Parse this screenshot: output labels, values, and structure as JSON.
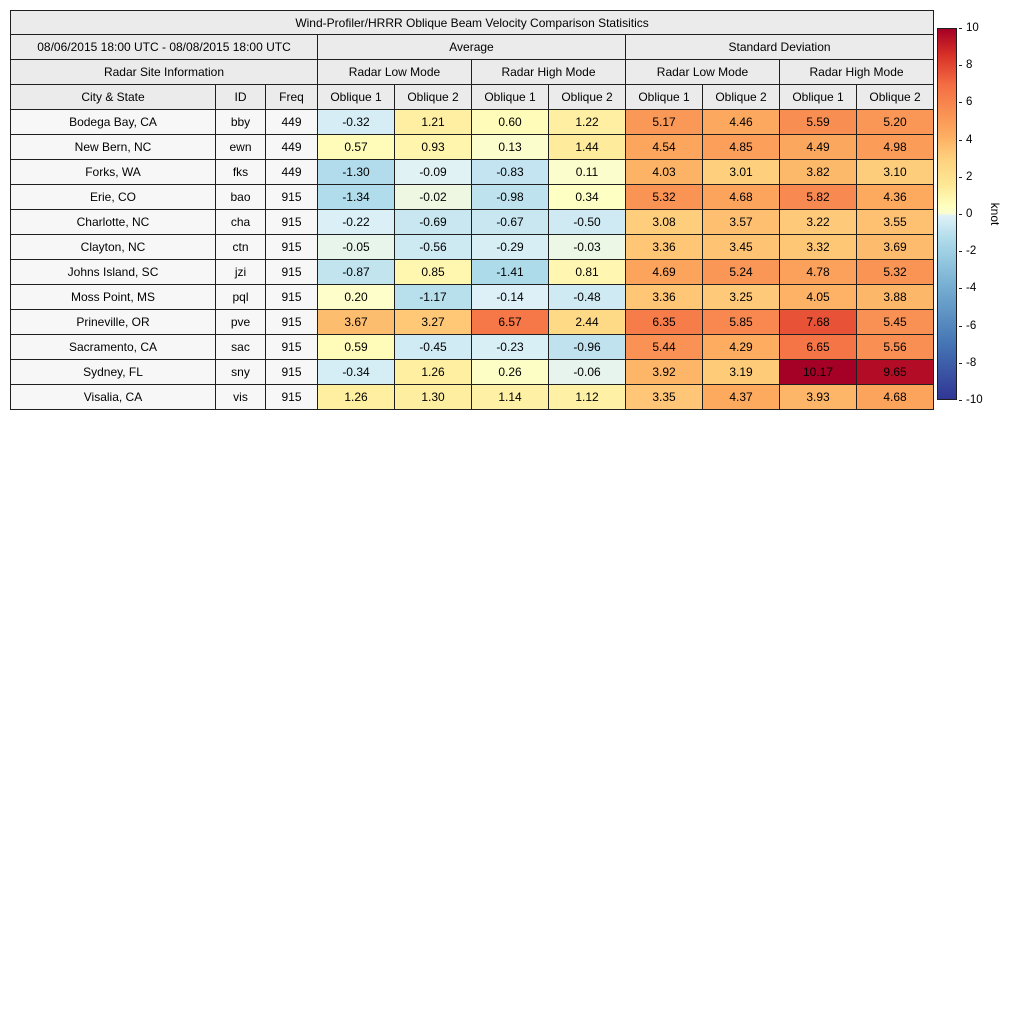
{
  "header": {
    "title": "Wind-Profiler/HRRR Oblique Beam Velocity Comparison Statisitics",
    "date_range": "08/06/2015 18:00 UTC - 08/08/2015 18:00 UTC",
    "groups": {
      "average": "Average",
      "std_dev": "Standard Deviation",
      "site_info": "Radar Site Information",
      "low_mode": "Radar Low Mode",
      "high_mode": "Radar High Mode"
    },
    "column_headers": [
      "City & State",
      "ID",
      "Freq",
      "Oblique 1",
      "Oblique 2",
      "Oblique 1",
      "Oblique 2",
      "Oblique 1",
      "Oblique 2",
      "Oblique 1",
      "Oblique 2"
    ]
  },
  "colorbar": {
    "label": "knot",
    "min": -10,
    "max": 10,
    "ticks": [
      10,
      8,
      6,
      4,
      2,
      0,
      -2,
      -4,
      -6,
      -8,
      -10
    ],
    "stops": [
      [
        -10,
        "#313695"
      ],
      [
        -7,
        "#4575b4"
      ],
      [
        -4,
        "#74add1"
      ],
      [
        -1.5,
        "#abd9e9"
      ],
      [
        -0.1,
        "#def1f7"
      ],
      [
        0.05,
        "#fbfdd0"
      ],
      [
        0.4,
        "#ffffbf"
      ],
      [
        1.6,
        "#fee895"
      ],
      [
        3,
        "#fed07e"
      ],
      [
        4.2,
        "#fdae61"
      ],
      [
        5.6,
        "#f98e52"
      ],
      [
        7,
        "#f46d43"
      ],
      [
        8.6,
        "#d73027"
      ],
      [
        10,
        "#a50026"
      ]
    ]
  },
  "chart_data": {
    "type": "heatmap",
    "title": "Wind-Profiler/HRRR Oblique Beam Velocity Comparison Statisitics",
    "date_range": "08/06/2015 18:00 UTC - 08/08/2015 18:00 UTC",
    "units": "knot",
    "color_range": [
      -10,
      10
    ],
    "row_header_columns": [
      "City & State",
      "ID",
      "Freq"
    ],
    "value_columns": [
      "Average / Radar Low Mode / Oblique 1",
      "Average / Radar Low Mode / Oblique 2",
      "Average / Radar High Mode / Oblique 1",
      "Average / Radar High Mode / Oblique 2",
      "Standard Deviation / Radar Low Mode / Oblique 1",
      "Standard Deviation / Radar Low Mode / Oblique 2",
      "Standard Deviation / Radar High Mode / Oblique 1",
      "Standard Deviation / Radar High Mode / Oblique 2"
    ],
    "rows": [
      {
        "city": "Bodega Bay, CA",
        "id": "bby",
        "freq": "449",
        "values": [
          "-0.32",
          "1.21",
          "0.60",
          "1.22",
          "5.17",
          "4.46",
          "5.59",
          "5.20"
        ]
      },
      {
        "city": "New Bern, NC",
        "id": "ewn",
        "freq": "449",
        "values": [
          "0.57",
          "0.93",
          "0.13",
          "1.44",
          "4.54",
          "4.85",
          "4.49",
          "4.98"
        ]
      },
      {
        "city": "Forks, WA",
        "id": "fks",
        "freq": "449",
        "values": [
          "-1.30",
          "-0.09",
          "-0.83",
          "0.11",
          "4.03",
          "3.01",
          "3.82",
          "3.10"
        ]
      },
      {
        "city": "Erie, CO",
        "id": "bao",
        "freq": "915",
        "values": [
          "-1.34",
          "-0.02",
          "-0.98",
          "0.34",
          "5.32",
          "4.68",
          "5.82",
          "4.36"
        ]
      },
      {
        "city": "Charlotte, NC",
        "id": "cha",
        "freq": "915",
        "values": [
          "-0.22",
          "-0.69",
          "-0.67",
          "-0.50",
          "3.08",
          "3.57",
          "3.22",
          "3.55"
        ]
      },
      {
        "city": "Clayton, NC",
        "id": "ctn",
        "freq": "915",
        "values": [
          "-0.05",
          "-0.56",
          "-0.29",
          "-0.03",
          "3.36",
          "3.45",
          "3.32",
          "3.69"
        ]
      },
      {
        "city": "Johns Island, SC",
        "id": "jzi",
        "freq": "915",
        "values": [
          "-0.87",
          "0.85",
          "-1.41",
          "0.81",
          "4.69",
          "5.24",
          "4.78",
          "5.32"
        ]
      },
      {
        "city": "Moss Point, MS",
        "id": "pql",
        "freq": "915",
        "values": [
          "0.20",
          "-1.17",
          "-0.14",
          "-0.48",
          "3.36",
          "3.25",
          "4.05",
          "3.88"
        ]
      },
      {
        "city": "Prineville, OR",
        "id": "pve",
        "freq": "915",
        "values": [
          "3.67",
          "3.27",
          "6.57",
          "2.44",
          "6.35",
          "5.85",
          "7.68",
          "5.45"
        ]
      },
      {
        "city": "Sacramento, CA",
        "id": "sac",
        "freq": "915",
        "values": [
          "0.59",
          "-0.45",
          "-0.23",
          "-0.96",
          "5.44",
          "4.29",
          "6.65",
          "5.56"
        ]
      },
      {
        "city": "Sydney, FL",
        "id": "sny",
        "freq": "915",
        "values": [
          "-0.34",
          "1.26",
          "0.26",
          "-0.06",
          "3.92",
          "3.19",
          "10.17",
          "9.65"
        ]
      },
      {
        "city": "Visalia, CA",
        "id": "vis",
        "freq": "915",
        "values": [
          "1.26",
          "1.30",
          "1.14",
          "1.12",
          "3.35",
          "4.37",
          "3.93",
          "4.68"
        ]
      }
    ]
  }
}
